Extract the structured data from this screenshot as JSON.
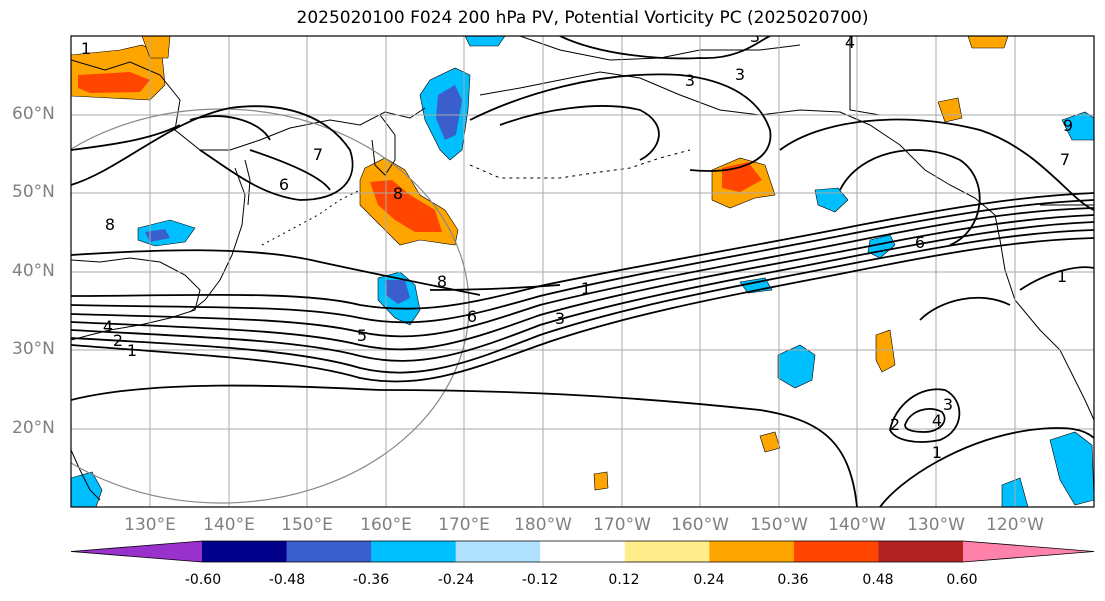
{
  "title": "2025020100 F024 200 hPa PV, Potential Vorticity PC (2025020700)",
  "lat_labels": [
    "60°N",
    "50°N",
    "40°N",
    "30°N",
    "20°N"
  ],
  "lon_labels": [
    "130°E",
    "140°E",
    "150°E",
    "160°E",
    "170°E",
    "180°W",
    "170°W",
    "160°W",
    "150°W",
    "140°W",
    "130°W",
    "120°W"
  ],
  "colorbar": {
    "colors": [
      "#9932cc",
      "#00008b",
      "#3a5fcd",
      "#00bfff",
      "#b0e2ff",
      "#ffffff",
      "#ffec8b",
      "#ffa500",
      "#ff4500",
      "#b22222",
      "#ff82ab"
    ],
    "tick_labels": [
      "-0.60",
      "-0.48",
      "-0.36",
      "-0.24",
      "-0.12",
      "0.12",
      "0.24",
      "0.36",
      "0.48",
      "0.60"
    ]
  },
  "contour_labels": [
    {
      "text": "1"
    },
    {
      "text": "3"
    },
    {
      "text": "4"
    },
    {
      "text": "7"
    },
    {
      "text": "6"
    },
    {
      "text": "8"
    },
    {
      "text": "8"
    },
    {
      "text": "9"
    },
    {
      "text": "8"
    },
    {
      "text": "3"
    },
    {
      "text": "7"
    },
    {
      "text": "6"
    },
    {
      "text": "1"
    },
    {
      "text": "3"
    },
    {
      "text": "5"
    },
    {
      "text": "6"
    },
    {
      "text": "4"
    },
    {
      "text": "2"
    },
    {
      "text": "1"
    },
    {
      "text": "3"
    },
    {
      "text": "2"
    },
    {
      "text": "4"
    },
    {
      "text": "3"
    },
    {
      "text": "1"
    },
    {
      "text": "1"
    }
  ]
}
